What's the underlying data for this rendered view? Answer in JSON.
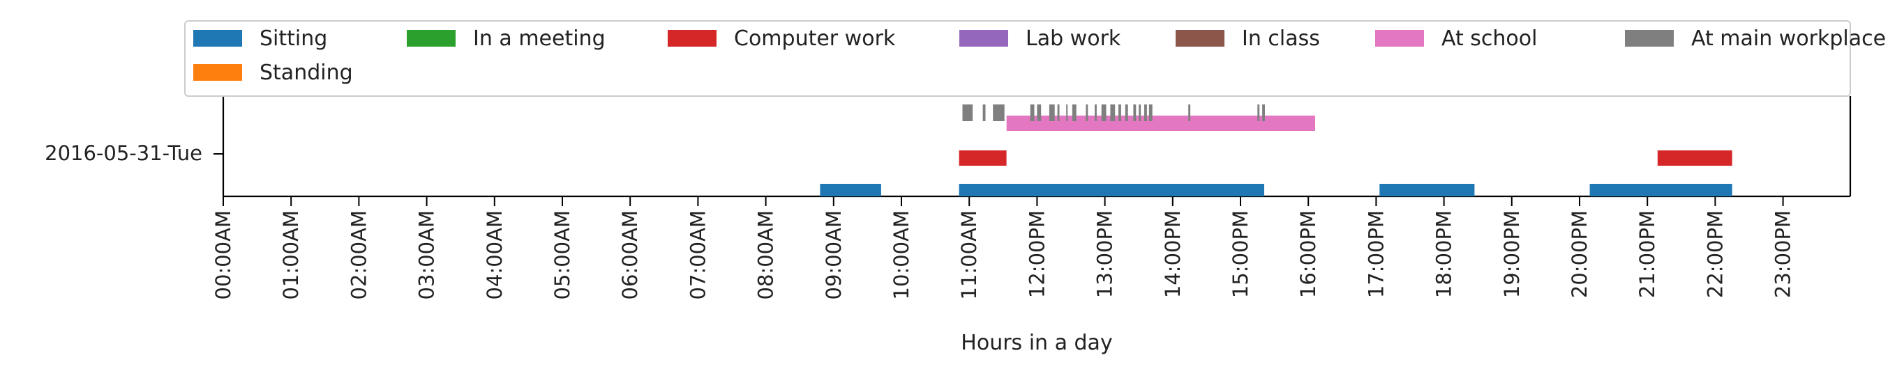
{
  "chart_data": {
    "type": "timeline",
    "title": "",
    "xlabel": "Hours in a day",
    "ylabel": "",
    "xlim": [
      0,
      24
    ],
    "row_label": "2016-05-31-Tue",
    "x_ticks": [
      "00:00AM",
      "01:00AM",
      "02:00AM",
      "03:00AM",
      "04:00AM",
      "05:00AM",
      "06:00AM",
      "07:00AM",
      "08:00AM",
      "09:00AM",
      "10:00AM",
      "11:00AM",
      "12:00PM",
      "13:00PM",
      "14:00PM",
      "15:00PM",
      "16:00PM",
      "17:00PM",
      "18:00PM",
      "19:00PM",
      "20:00PM",
      "21:00PM",
      "22:00PM",
      "23:00PM"
    ],
    "legend": {
      "placement": "top",
      "entries": [
        {
          "name": "Sitting",
          "color": "#1f77b4"
        },
        {
          "name": "In a meeting",
          "color": "#2ca02c"
        },
        {
          "name": "Computer work",
          "color": "#d62728"
        },
        {
          "name": "Lab work",
          "color": "#9467bd"
        },
        {
          "name": "In class",
          "color": "#8c564b"
        },
        {
          "name": "At school",
          "color": "#e377c2"
        },
        {
          "name": "At main workplace",
          "color": "#7f7f7f"
        },
        {
          "name": "Standing",
          "color": "#ff7f0e"
        }
      ]
    },
    "series": [
      {
        "name": "Sitting",
        "color": "#1f77b4",
        "level": 0,
        "intervals": [
          [
            8.8,
            9.7
          ],
          [
            10.85,
            15.35
          ],
          [
            17.05,
            18.45
          ],
          [
            20.15,
            22.25
          ]
        ]
      },
      {
        "name": "Computer work",
        "color": "#d62728",
        "level": 1,
        "intervals": [
          [
            10.85,
            11.55
          ],
          [
            21.15,
            22.25
          ]
        ]
      },
      {
        "name": "At school",
        "color": "#e377c2",
        "level": 2,
        "intervals": [
          [
            11.55,
            16.1
          ]
        ]
      },
      {
        "name": "At main workplace",
        "color": "#7f7f7f",
        "level": 3,
        "intervals": [
          [
            10.9,
            11.05
          ],
          [
            11.2,
            11.24
          ],
          [
            11.35,
            11.52
          ],
          [
            11.9,
            11.96
          ],
          [
            12.0,
            12.06
          ],
          [
            12.18,
            12.26
          ],
          [
            12.3,
            12.33
          ],
          [
            12.43,
            12.45
          ],
          [
            12.52,
            12.58
          ],
          [
            12.72,
            12.75
          ],
          [
            12.85,
            12.88
          ],
          [
            12.95,
            13.02
          ],
          [
            13.08,
            13.15
          ],
          [
            13.2,
            13.24
          ],
          [
            13.3,
            13.34
          ],
          [
            13.42,
            13.46
          ],
          [
            13.5,
            13.53
          ],
          [
            13.58,
            13.62
          ],
          [
            13.65,
            13.7
          ],
          [
            14.23,
            14.26
          ],
          [
            15.25,
            15.28
          ],
          [
            15.32,
            15.36
          ]
        ]
      }
    ]
  }
}
